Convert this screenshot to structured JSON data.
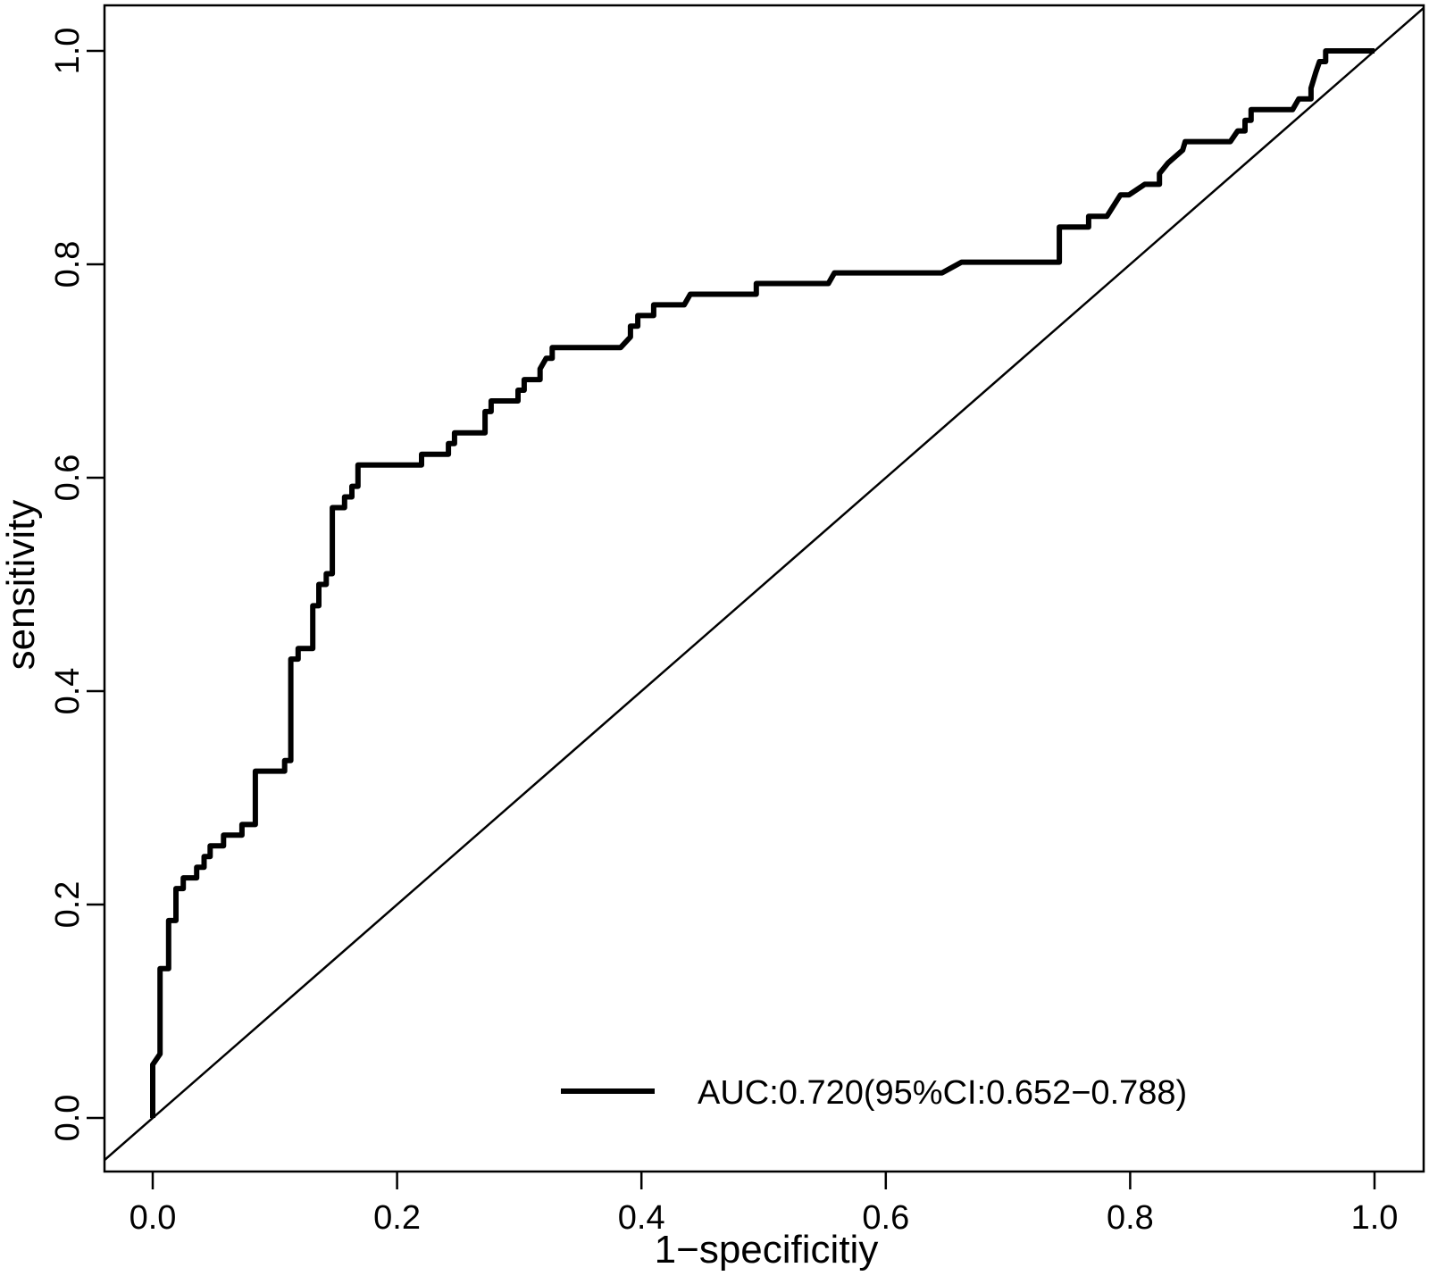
{
  "chart_data": {
    "type": "line",
    "xlabel": "1−specificitiy",
    "ylabel": "sensitivity",
    "xlim": [
      0.0,
      1.0
    ],
    "ylim": [
      0.0,
      1.0
    ],
    "x_ticks": [
      "0.0",
      "0.2",
      "0.4",
      "0.6",
      "0.8",
      "1.0"
    ],
    "y_ticks": [
      "0.0",
      "0.2",
      "0.4",
      "0.6",
      "0.8",
      "1.0"
    ],
    "grid": false,
    "legend": {
      "position": "bottom-right",
      "label": "AUC:0.720(95%CI:0.652−0.788)"
    },
    "reference_line": {
      "x": [
        0,
        1
      ],
      "y": [
        0,
        1
      ]
    },
    "series": [
      {
        "color": "#000000",
        "points": [
          [
            0.0,
            0.0
          ],
          [
            0.0,
            0.05
          ],
          [
            0.006,
            0.06
          ],
          [
            0.006,
            0.14
          ],
          [
            0.013,
            0.14
          ],
          [
            0.013,
            0.185
          ],
          [
            0.019,
            0.185
          ],
          [
            0.019,
            0.215
          ],
          [
            0.025,
            0.215
          ],
          [
            0.025,
            0.225
          ],
          [
            0.036,
            0.225
          ],
          [
            0.036,
            0.235
          ],
          [
            0.042,
            0.235
          ],
          [
            0.042,
            0.245
          ],
          [
            0.047,
            0.245
          ],
          [
            0.047,
            0.255
          ],
          [
            0.058,
            0.255
          ],
          [
            0.058,
            0.265
          ],
          [
            0.073,
            0.265
          ],
          [
            0.073,
            0.275
          ],
          [
            0.084,
            0.275
          ],
          [
            0.084,
            0.325
          ],
          [
            0.108,
            0.325
          ],
          [
            0.108,
            0.335
          ],
          [
            0.113,
            0.335
          ],
          [
            0.113,
            0.43
          ],
          [
            0.119,
            0.43
          ],
          [
            0.119,
            0.44
          ],
          [
            0.131,
            0.44
          ],
          [
            0.131,
            0.48
          ],
          [
            0.136,
            0.48
          ],
          [
            0.136,
            0.5
          ],
          [
            0.142,
            0.5
          ],
          [
            0.142,
            0.51
          ],
          [
            0.147,
            0.51
          ],
          [
            0.147,
            0.572
          ],
          [
            0.157,
            0.572
          ],
          [
            0.157,
            0.582
          ],
          [
            0.163,
            0.582
          ],
          [
            0.163,
            0.592
          ],
          [
            0.168,
            0.592
          ],
          [
            0.168,
            0.612
          ],
          [
            0.22,
            0.612
          ],
          [
            0.22,
            0.622
          ],
          [
            0.242,
            0.622
          ],
          [
            0.242,
            0.632
          ],
          [
            0.247,
            0.632
          ],
          [
            0.247,
            0.642
          ],
          [
            0.272,
            0.642
          ],
          [
            0.272,
            0.662
          ],
          [
            0.277,
            0.662
          ],
          [
            0.277,
            0.672
          ],
          [
            0.299,
            0.672
          ],
          [
            0.299,
            0.682
          ],
          [
            0.304,
            0.682
          ],
          [
            0.304,
            0.692
          ],
          [
            0.317,
            0.692
          ],
          [
            0.317,
            0.702
          ],
          [
            0.322,
            0.712
          ],
          [
            0.327,
            0.712
          ],
          [
            0.327,
            0.722
          ],
          [
            0.383,
            0.722
          ],
          [
            0.391,
            0.732
          ],
          [
            0.391,
            0.742
          ],
          [
            0.397,
            0.742
          ],
          [
            0.397,
            0.752
          ],
          [
            0.41,
            0.752
          ],
          [
            0.41,
            0.762
          ],
          [
            0.435,
            0.762
          ],
          [
            0.44,
            0.772
          ],
          [
            0.494,
            0.772
          ],
          [
            0.494,
            0.782
          ],
          [
            0.553,
            0.782
          ],
          [
            0.558,
            0.792
          ],
          [
            0.646,
            0.792
          ],
          [
            0.662,
            0.802
          ],
          [
            0.742,
            0.802
          ],
          [
            0.742,
            0.835
          ],
          [
            0.766,
            0.835
          ],
          [
            0.766,
            0.845
          ],
          [
            0.781,
            0.845
          ],
          [
            0.792,
            0.865
          ],
          [
            0.799,
            0.865
          ],
          [
            0.812,
            0.875
          ],
          [
            0.824,
            0.875
          ],
          [
            0.824,
            0.885
          ],
          [
            0.831,
            0.895
          ],
          [
            0.843,
            0.907
          ],
          [
            0.845,
            0.915
          ],
          [
            0.882,
            0.915
          ],
          [
            0.888,
            0.925
          ],
          [
            0.894,
            0.925
          ],
          [
            0.894,
            0.935
          ],
          [
            0.899,
            0.935
          ],
          [
            0.899,
            0.945
          ],
          [
            0.933,
            0.945
          ],
          [
            0.938,
            0.955
          ],
          [
            0.948,
            0.955
          ],
          [
            0.948,
            0.965
          ],
          [
            0.952,
            0.98
          ],
          [
            0.955,
            0.99
          ],
          [
            0.96,
            0.99
          ],
          [
            0.96,
            1.0
          ],
          [
            1.0,
            1.0
          ]
        ]
      }
    ]
  }
}
